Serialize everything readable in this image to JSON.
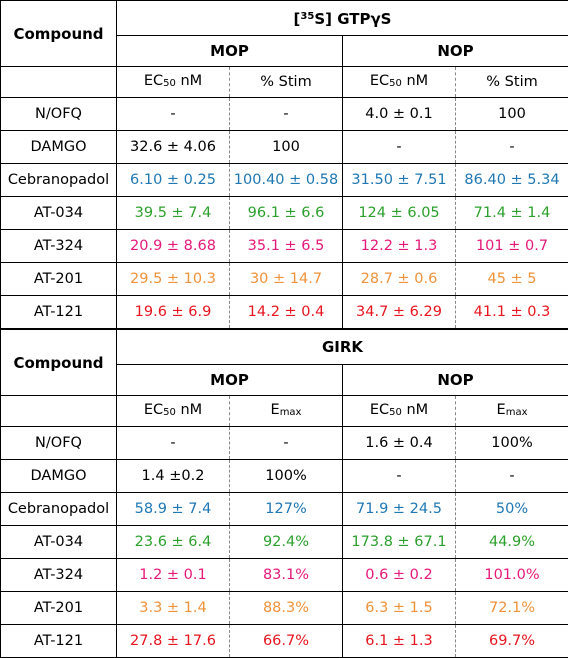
{
  "gtp": {
    "compound_header": "Compound",
    "title_sup": "35",
    "title_text": "S] GTPγS",
    "title_open": "[",
    "mop": "MOP",
    "nop": "NOP",
    "ec50_prefix": "EC",
    "ec50_sub": "50",
    "ec50_unit": " nM",
    "stim": "% Stim",
    "rows": [
      {
        "name": "N/OFQ",
        "color": "#000000",
        "mop_ec": "-",
        "mop_val": "-",
        "nop_ec": "4.0 ± 0.1",
        "nop_val": "100"
      },
      {
        "name": "DAMGO",
        "color": "#000000",
        "mop_ec": "32.6 ± 4.06",
        "mop_val": "100",
        "nop_ec": "-",
        "nop_val": "-"
      },
      {
        "name": "Cebranopadol",
        "color": "#1f77b4",
        "mop_ec": "6.10 ± 0.25",
        "mop_val": "100.40 ± 0.58",
        "nop_ec": "31.50 ± 7.51",
        "nop_val": "86.40 ± 5.34"
      },
      {
        "name": "AT-034",
        "color": "#2ca02c",
        "mop_ec": "39.5 ± 7.4",
        "mop_val": "96.1 ± 6.6",
        "nop_ec": "124 ± 6.05",
        "nop_val": "71.4 ± 1.4"
      },
      {
        "name": "AT-324",
        "color": "#e6197a",
        "mop_ec": "20.9 ± 8.68",
        "mop_val": "35.1 ± 6.5",
        "nop_ec": "12.2 ± 1.3",
        "nop_val": "101 ± 0.7"
      },
      {
        "name": "AT-201",
        "color": "#f0923a",
        "mop_ec": "29.5 ± 10.3",
        "mop_val": "30 ± 14.7",
        "nop_ec": "28.7 ± 0.6",
        "nop_val": "45 ± 5"
      },
      {
        "name": "AT-121",
        "color": "#e8141e",
        "mop_ec": "19.6 ± 6.9",
        "mop_val": "14.2 ± 0.4",
        "nop_ec": "34.7 ± 6.29",
        "nop_val": "41.1 ± 0.3"
      }
    ]
  },
  "girk": {
    "compound_header": "Compound",
    "title": "GIRK",
    "mop": "MOP",
    "nop": "NOP",
    "ec50_prefix": "EC",
    "ec50_sub": "50",
    "ec50_unit": " nM",
    "emax_prefix": "E",
    "emax_sub": "max",
    "rows": [
      {
        "name": "N/OFQ",
        "color": "#000000",
        "mop_ec": "-",
        "mop_val": "-",
        "nop_ec": "1.6 ± 0.4",
        "nop_val": "100%"
      },
      {
        "name": "DAMGO",
        "color": "#000000",
        "mop_ec": "1.4 ±0.2",
        "mop_val": "100%",
        "nop_ec": "-",
        "nop_val": "-"
      },
      {
        "name": "Cebranopadol",
        "color": "#1f77b4",
        "mop_ec": "58.9 ± 7.4",
        "mop_val": "127%",
        "nop_ec": "71.9 ± 24.5",
        "nop_val": "50%"
      },
      {
        "name": "AT-034",
        "color": "#2ca02c",
        "mop_ec": "23.6 ± 6.4",
        "mop_val": "92.4%",
        "nop_ec": "173.8 ± 67.1",
        "nop_val": "44.9%"
      },
      {
        "name": "AT-324",
        "color": "#e6197a",
        "mop_ec": "1.2 ± 0.1",
        "mop_val": "83.1%",
        "nop_ec": "0.6 ± 0.2",
        "nop_val": "101.0%"
      },
      {
        "name": "AT-201",
        "color": "#f0923a",
        "mop_ec": "3.3 ± 1.4",
        "mop_val": "88.3%",
        "nop_ec": "6.3 ± 1.5",
        "nop_val": "72.1%"
      },
      {
        "name": "AT-121",
        "color": "#e8141e",
        "mop_ec": "27.8 ± 17.6",
        "mop_val": "66.7%",
        "nop_ec": "6.1 ± 1.3",
        "nop_val": "69.7%"
      }
    ]
  }
}
